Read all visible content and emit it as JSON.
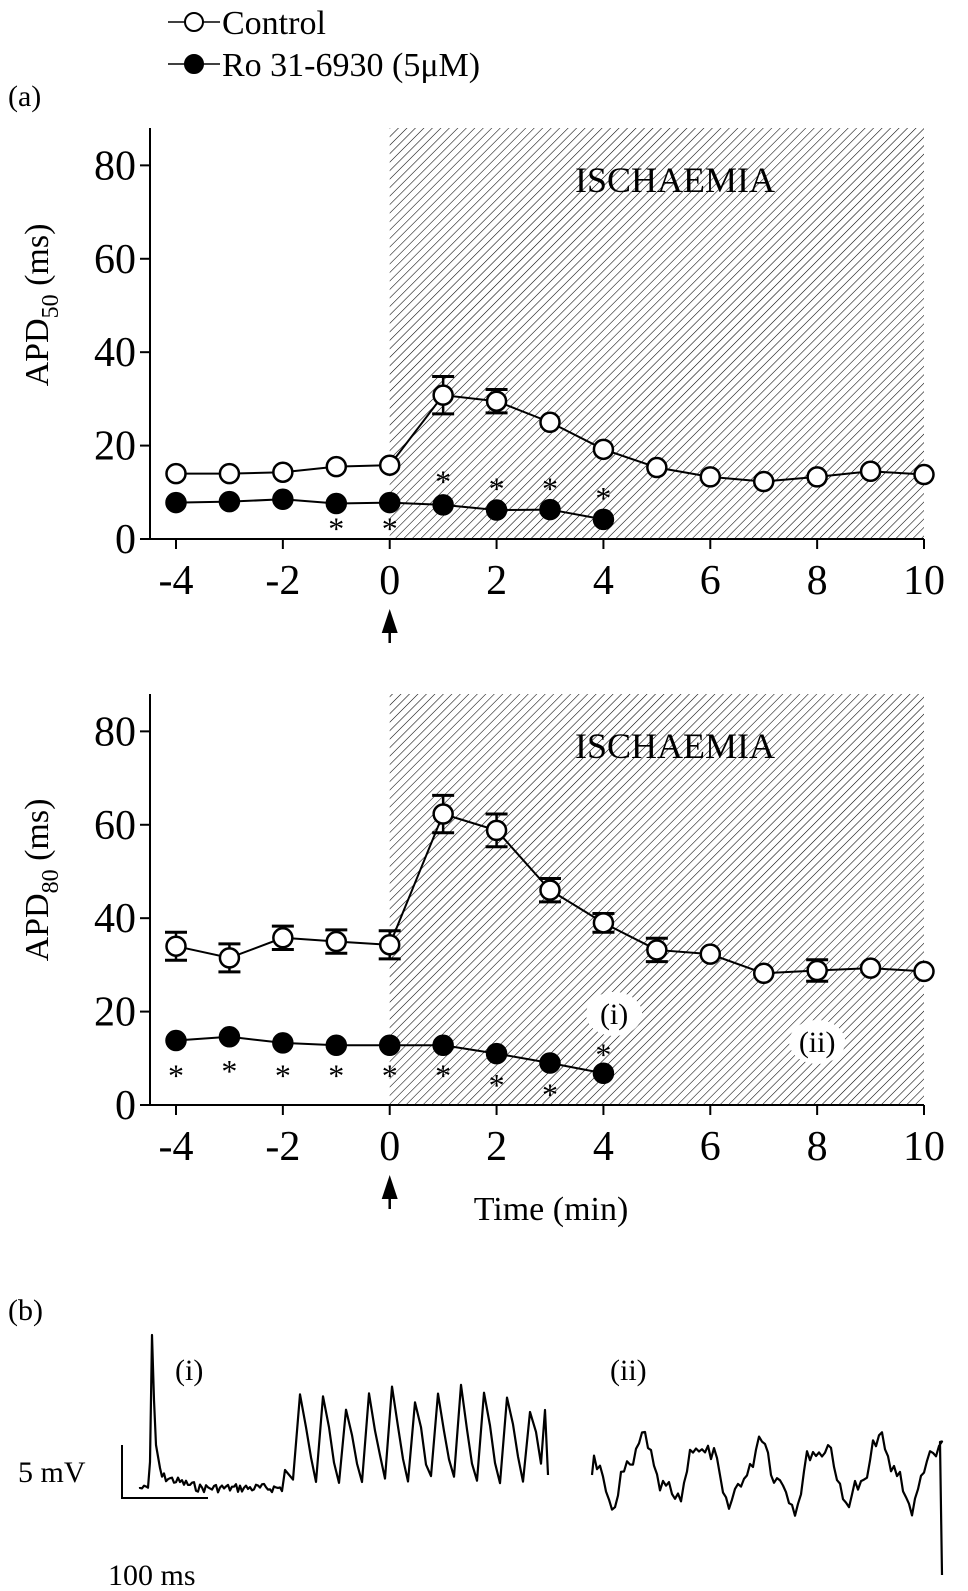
{
  "figure": {
    "panel_a_label": "(a)",
    "panel_b_label": "(b)",
    "legend": [
      {
        "name": "Control",
        "marker": "open-circle"
      },
      {
        "name": "Ro 31-6930 (5μM)",
        "marker": "filled-circle"
      }
    ],
    "colors": {
      "ink": "#000000",
      "background": "#ffffff"
    }
  },
  "chart_data": [
    {
      "type": "line",
      "panel": "a-top",
      "ylabel": "APD",
      "ylabel_sub": "50",
      "ylabel_unit": " (ms)",
      "xlabel": "",
      "xlim": [
        -4,
        10
      ],
      "ylim": [
        0,
        88
      ],
      "xticks": [
        -4,
        -2,
        0,
        2,
        4,
        6,
        8,
        10
      ],
      "yticks": [
        0,
        20,
        40,
        60,
        80
      ],
      "shaded_region": {
        "x": [
          0,
          10
        ],
        "label": "ISCHAEMIA"
      },
      "arrow_at_x": 0,
      "series": [
        {
          "name": "Control",
          "marker": "open",
          "x": [
            -4,
            -3,
            -2,
            -1,
            0,
            1,
            2,
            3,
            4,
            5,
            6,
            7,
            8,
            9,
            10
          ],
          "y": [
            14,
            14,
            14.3,
            15.5,
            15.8,
            30.8,
            29.5,
            25,
            19.2,
            15.3,
            13.3,
            12.3,
            13.3,
            14.5,
            13.8
          ],
          "err": [
            0,
            0,
            0,
            0,
            0,
            4,
            2.5,
            0,
            0,
            0,
            0,
            0,
            0,
            0,
            0
          ]
        },
        {
          "name": "Ro 31-6930 (5μM)",
          "marker": "filled",
          "x": [
            -4,
            -3,
            -2,
            -1,
            0,
            1,
            2,
            3,
            4
          ],
          "y": [
            7.8,
            8,
            8.5,
            7.6,
            7.8,
            7.3,
            6.2,
            6.3,
            4.2
          ],
          "err": [
            0,
            0,
            0,
            0,
            0,
            0,
            0,
            0,
            0
          ]
        }
      ],
      "significance": [
        {
          "x": -1,
          "y": 2.5,
          "text": "*"
        },
        {
          "x": 0,
          "y": 2.5,
          "text": "*"
        },
        {
          "x": 1,
          "y": 12.5,
          "text": "*"
        },
        {
          "x": 2,
          "y": 11,
          "text": "*"
        },
        {
          "x": 3,
          "y": 11,
          "text": "*"
        },
        {
          "x": 4,
          "y": 9,
          "text": "*"
        }
      ]
    },
    {
      "type": "line",
      "panel": "a-bottom",
      "ylabel": "APD",
      "ylabel_sub": "80",
      "ylabel_unit": " (ms)",
      "xlabel": "Time (min)",
      "xlim": [
        -4,
        10
      ],
      "ylim": [
        0,
        88
      ],
      "xticks": [
        -4,
        -2,
        0,
        2,
        4,
        6,
        8,
        10
      ],
      "yticks": [
        0,
        20,
        40,
        60,
        80
      ],
      "shaded_region": {
        "x": [
          0,
          10
        ],
        "label": "ISCHAEMIA"
      },
      "arrow_at_x": 0,
      "callouts": [
        {
          "x": 4.2,
          "y": 19.5,
          "text": "(i)"
        },
        {
          "x": 8,
          "y": 13.5,
          "text": "(ii)"
        }
      ],
      "series": [
        {
          "name": "Control",
          "marker": "open",
          "x": [
            -4,
            -3,
            -2,
            -1,
            0,
            1,
            2,
            3,
            4,
            5,
            6,
            7,
            8,
            9,
            10
          ],
          "y": [
            34,
            31.5,
            35.8,
            35,
            34.3,
            62.3,
            58.8,
            46,
            39,
            33.2,
            32.3,
            28.2,
            28.8,
            29.3,
            28.6
          ],
          "err": [
            3,
            3,
            2.5,
            2.5,
            3,
            4,
            3.5,
            2.5,
            2,
            2.5,
            0,
            0,
            2.3,
            0,
            0
          ]
        },
        {
          "name": "Ro 31-6930 (5μM)",
          "marker": "filled",
          "x": [
            -4,
            -3,
            -2,
            -1,
            0,
            1,
            2,
            3,
            4
          ],
          "y": [
            13.8,
            14.6,
            13.3,
            12.8,
            12.8,
            12.8,
            11,
            9,
            6.8
          ],
          "err": [
            0,
            0,
            0,
            0,
            0,
            0,
            0,
            0,
            0
          ]
        }
      ],
      "significance": [
        {
          "x": -4,
          "y": 6.5,
          "text": "*"
        },
        {
          "x": -3,
          "y": 7.5,
          "text": "*"
        },
        {
          "x": -2,
          "y": 6.5,
          "text": "*"
        },
        {
          "x": -1,
          "y": 6.5,
          "text": "*"
        },
        {
          "x": 0,
          "y": 6.5,
          "text": "*"
        },
        {
          "x": 1,
          "y": 6.5,
          "text": "*"
        },
        {
          "x": 2,
          "y": 4.5,
          "text": "*"
        },
        {
          "x": 3,
          "y": 2.5,
          "text": "*"
        },
        {
          "x": 4,
          "y": 11,
          "text": "*"
        }
      ]
    }
  ],
  "traces": {
    "trace_i_label": "(i)",
    "trace_ii_label": "(ii)",
    "scale_voltage": "5 mV",
    "scale_time": "100 ms"
  }
}
